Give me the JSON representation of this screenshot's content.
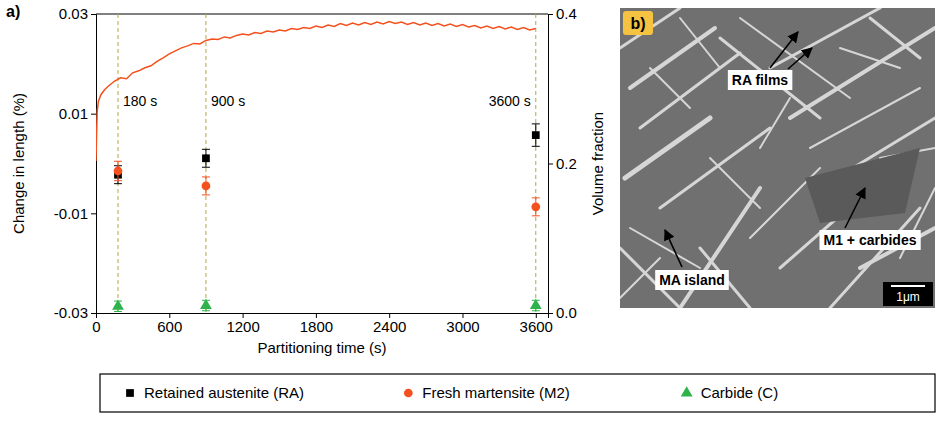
{
  "chart_data": {
    "type": "line",
    "x_label": "Partitioning time (s)",
    "y_label": "Change in length (%)",
    "y2_label": "Volume fraction",
    "xlim": [
      0,
      3700
    ],
    "xticks": [
      0,
      600,
      1200,
      1800,
      2400,
      3000,
      3600
    ],
    "ylim": [
      -0.03,
      0.03
    ],
    "yticks": [
      -0.03,
      -0.01,
      0.01,
      0.03
    ],
    "y2lim": [
      0,
      0.4
    ],
    "y2ticks": [
      {
        "value": 0,
        "label": "0.0"
      },
      0.2,
      0.4
    ],
    "legend": "bottom",
    "series": [
      {
        "type": "line",
        "color": "#f4511e",
        "x": [
          0,
          5,
          10,
          20,
          40,
          70,
          100,
          150,
          200,
          250,
          300,
          350,
          400,
          450,
          500,
          550,
          600,
          650,
          700,
          750,
          800,
          850,
          900,
          950,
          1000,
          1050,
          1100,
          1150,
          1200,
          1250,
          1300,
          1350,
          1400,
          1450,
          1500,
          1550,
          1600,
          1650,
          1700,
          1750,
          1800,
          1850,
          1900,
          1950,
          2000,
          2050,
          2100,
          2150,
          2200,
          2250,
          2300,
          2350,
          2400,
          2450,
          2500,
          2550,
          2600,
          2650,
          2700,
          2750,
          2800,
          2850,
          2900,
          2950,
          3000,
          3050,
          3100,
          3150,
          3200,
          3250,
          3300,
          3350,
          3400,
          3450,
          3500,
          3550,
          3600
        ],
        "values": [
          0.0005,
          0.006,
          0.0105,
          0.0125,
          0.0138,
          0.0148,
          0.0155,
          0.0165,
          0.0172,
          0.017,
          0.0182,
          0.0186,
          0.0192,
          0.0196,
          0.0205,
          0.0212,
          0.022,
          0.0226,
          0.0232,
          0.0236,
          0.0241,
          0.024,
          0.0247,
          0.025,
          0.0249,
          0.0254,
          0.0252,
          0.0257,
          0.026,
          0.0258,
          0.0263,
          0.0261,
          0.0266,
          0.0264,
          0.0268,
          0.0266,
          0.0271,
          0.0269,
          0.0273,
          0.0271,
          0.0276,
          0.0273,
          0.0278,
          0.0275,
          0.0281,
          0.0277,
          0.0282,
          0.0278,
          0.0283,
          0.0279,
          0.0284,
          0.028,
          0.0285,
          0.0281,
          0.0284,
          0.0279,
          0.0283,
          0.0278,
          0.0282,
          0.0277,
          0.0281,
          0.0276,
          0.028,
          0.0275,
          0.0279,
          0.0274,
          0.0277,
          0.0272,
          0.0276,
          0.0271,
          0.0275,
          0.027,
          0.0274,
          0.0269,
          0.0273,
          0.0268,
          0.0271
        ]
      },
      {
        "name": "Retained austenite (RA)",
        "type": "scatter",
        "marker": "square",
        "color": "#000000",
        "axis": "y2",
        "x": [
          180,
          900,
          3600
        ],
        "values": [
          0.185,
          0.207,
          0.238
        ],
        "errors": [
          0.012,
          0.012,
          0.015
        ]
      },
      {
        "name": "Fresh martensite (M2)",
        "type": "scatter",
        "marker": "circle",
        "color": "#f4511e",
        "axis": "y2",
        "x": [
          180,
          900,
          3600
        ],
        "values": [
          0.19,
          0.17,
          0.142
        ],
        "errors": [
          0.013,
          0.012,
          0.012
        ]
      },
      {
        "name": "Carbide (C)",
        "type": "scatter",
        "marker": "triangle",
        "color": "#2db34a",
        "axis": "y2",
        "x": [
          180,
          900,
          3600
        ],
        "values": [
          0.009,
          0.01,
          0.01
        ],
        "errors": [
          0.007,
          0.007,
          0.007
        ]
      }
    ],
    "annotations": [
      {
        "x": 180,
        "label": "180 s"
      },
      {
        "x": 900,
        "label": "900 s"
      },
      {
        "x": 3600,
        "label": "3600 s"
      }
    ]
  },
  "panels": [
    "a)",
    "b)"
  ],
  "micrograph": {
    "annotations": [
      "RA films",
      "M1 + carbides",
      "MA island"
    ],
    "scale_bar": "1μm"
  }
}
